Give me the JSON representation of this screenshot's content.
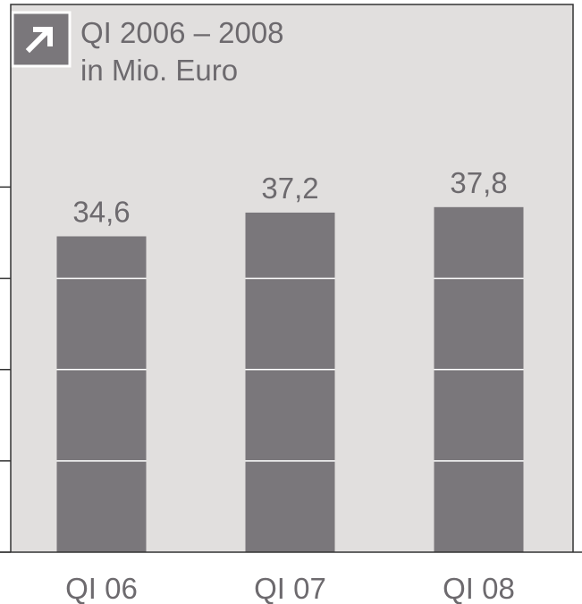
{
  "chart_data": {
    "type": "bar",
    "title": "QI 2006 – 2008",
    "subtitle": "in Mio. Euro",
    "categories": [
      "QI 06",
      "QI 07",
      "QI 08"
    ],
    "values": [
      34.6,
      37.2,
      37.8
    ],
    "value_labels": [
      "34,6",
      "37,2",
      "37,8"
    ],
    "color": "#7a777b",
    "ylim": [
      0,
      60
    ],
    "yticks": [
      0,
      10,
      20,
      30,
      40
    ],
    "grid": true
  }
}
